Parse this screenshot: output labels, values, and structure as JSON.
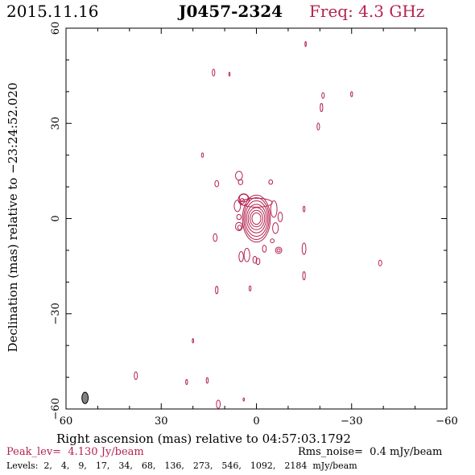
{
  "header": {
    "date": "2015.11.16",
    "source": "J0457-2324",
    "freq": "Freq: 4.3 GHz"
  },
  "chart_data": {
    "type": "contour",
    "xlabel": "Right ascension (mas) relative to 04:57:03.1792",
    "ylabel": "Declination (mas) relative to −23:24:52.020",
    "xlim": [
      60,
      -60
    ],
    "ylim": [
      -60,
      60
    ],
    "xticks": [
      60,
      30,
      0,
      -30,
      -60
    ],
    "yticks": [
      -60,
      -30,
      0,
      30,
      60
    ],
    "xtick_labels": [
      "60",
      "30",
      "0",
      "−30",
      "−60"
    ],
    "ytick_labels": [
      "−60",
      "−30",
      "0",
      "30",
      "60"
    ],
    "peak_label": "Peak_lev=",
    "peak_value": "4.130 Jy/beam",
    "rms_label": "Rms_noise=",
    "rms_value": "0.4 mJy/beam",
    "levels_label": "Levels:",
    "levels": [
      2,
      4,
      9,
      17,
      34,
      68,
      136,
      273,
      546,
      1092,
      2184
    ],
    "levels_unit": "mJy/beam",
    "core": {
      "x": 0,
      "y": 0,
      "rings": [
        {
          "rx": 1.4,
          "ry": 1.8
        },
        {
          "rx": 2.0,
          "ry": 2.6
        },
        {
          "rx": 2.6,
          "ry": 3.5
        },
        {
          "rx": 3.1,
          "ry": 4.5
        },
        {
          "rx": 3.6,
          "ry": 5.6
        },
        {
          "rx": 4.0,
          "ry": 6.6
        },
        {
          "rx": 4.4,
          "ry": 7.4
        }
      ]
    },
    "blobs": [
      {
        "x": 4.0,
        "y": 6.5,
        "rx": 1.4,
        "ry": 1.2
      },
      {
        "x": 5.5,
        "y": 13.5,
        "rx": 1.1,
        "ry": 1.4
      },
      {
        "x": 5.0,
        "y": 11.5,
        "rx": 0.7,
        "ry": 0.8
      },
      {
        "x": 4.0,
        "y": 6.0,
        "rx": 1.7,
        "ry": 1.8
      },
      {
        "x": 0.0,
        "y": 5.0,
        "rx": 5.0,
        "ry": 1.4
      },
      {
        "x": -5.5,
        "y": 3.0,
        "rx": 1.0,
        "ry": 2.6
      },
      {
        "x": -6.0,
        "y": -3.0,
        "rx": 0.9,
        "ry": 1.7
      },
      {
        "x": -7.5,
        "y": 0.5,
        "rx": 0.7,
        "ry": 1.5
      },
      {
        "x": 6.0,
        "y": 4.0,
        "rx": 1.0,
        "ry": 1.8
      },
      {
        "x": 5.5,
        "y": -2.5,
        "rx": 1.1,
        "ry": 1.3
      },
      {
        "x": 5.5,
        "y": 0.5,
        "rx": 0.7,
        "ry": 0.8
      },
      {
        "x": 4.5,
        "y": 5.5,
        "rx": 0.7,
        "ry": 0.8
      },
      {
        "x": -5.0,
        "y": -7.0,
        "rx": 0.6,
        "ry": 0.6
      },
      {
        "x": 5.3,
        "y": -2.8,
        "rx": 0.6,
        "ry": 0.7
      },
      {
        "x": -2.5,
        "y": -9.5,
        "rx": 0.6,
        "ry": 1.1
      },
      {
        "x": -4.5,
        "y": 11.5,
        "rx": 0.6,
        "ry": 0.7
      },
      {
        "x": -7.0,
        "y": -10.0,
        "rx": 1.0,
        "ry": 1.0
      },
      {
        "x": -7.0,
        "y": -10.0,
        "rx": 0.5,
        "ry": 0.5
      },
      {
        "x": 3.0,
        "y": -11.5,
        "rx": 0.9,
        "ry": 2.1
      },
      {
        "x": 4.8,
        "y": -12.0,
        "rx": 0.7,
        "ry": 1.6
      },
      {
        "x": 0.5,
        "y": -13.0,
        "rx": 0.6,
        "ry": 1.1
      },
      {
        "x": -0.5,
        "y": -13.5,
        "rx": 0.6,
        "ry": 1.0
      },
      {
        "x": 13.0,
        "y": -6.0,
        "rx": 0.6,
        "ry": 1.2
      },
      {
        "x": 12.5,
        "y": 11.0,
        "rx": 0.6,
        "ry": 1.0
      },
      {
        "x": -15.0,
        "y": -9.5,
        "rx": 0.6,
        "ry": 1.8
      },
      {
        "x": -15.0,
        "y": -18.0,
        "rx": 0.4,
        "ry": 1.3
      },
      {
        "x": -15.0,
        "y": 3.0,
        "rx": 0.3,
        "ry": 0.9
      },
      {
        "x": 12.5,
        "y": -22.5,
        "rx": 0.4,
        "ry": 1.2
      },
      {
        "x": 2.0,
        "y": -22.0,
        "rx": 0.3,
        "ry": 0.8
      },
      {
        "x": -39.0,
        "y": -14.0,
        "rx": 0.5,
        "ry": 0.9
      },
      {
        "x": -19.5,
        "y": 29.0,
        "rx": 0.4,
        "ry": 1.1
      },
      {
        "x": -20.5,
        "y": 35.0,
        "rx": 0.4,
        "ry": 1.3
      },
      {
        "x": -21.0,
        "y": 38.8,
        "rx": 0.4,
        "ry": 0.9
      },
      {
        "x": -30.0,
        "y": 39.2,
        "rx": 0.3,
        "ry": 0.8
      },
      {
        "x": 13.5,
        "y": 46.0,
        "rx": 0.4,
        "ry": 1.1
      },
      {
        "x": 8.5,
        "y": 45.5,
        "rx": 0.2,
        "ry": 0.6
      },
      {
        "x": -15.5,
        "y": 55.0,
        "rx": 0.2,
        "ry": 0.8
      },
      {
        "x": 17.0,
        "y": 20.0,
        "rx": 0.3,
        "ry": 0.7
      },
      {
        "x": 20.0,
        "y": -38.5,
        "rx": 0.2,
        "ry": 0.7
      },
      {
        "x": 38.0,
        "y": -49.5,
        "rx": 0.5,
        "ry": 1.2
      },
      {
        "x": 22.0,
        "y": -51.5,
        "rx": 0.3,
        "ry": 0.8
      },
      {
        "x": 15.5,
        "y": -51.0,
        "rx": 0.3,
        "ry": 0.9
      },
      {
        "x": 12.0,
        "y": -58.5,
        "rx": 0.6,
        "ry": 1.3
      },
      {
        "x": 4.0,
        "y": -57.0,
        "rx": 0.2,
        "ry": 0.5
      }
    ],
    "beam": {
      "x": 54.0,
      "y": -56.5,
      "rx": 1.0,
      "ry": 1.8
    },
    "contour_color": "#b5224e",
    "beam_color": "#808080"
  }
}
